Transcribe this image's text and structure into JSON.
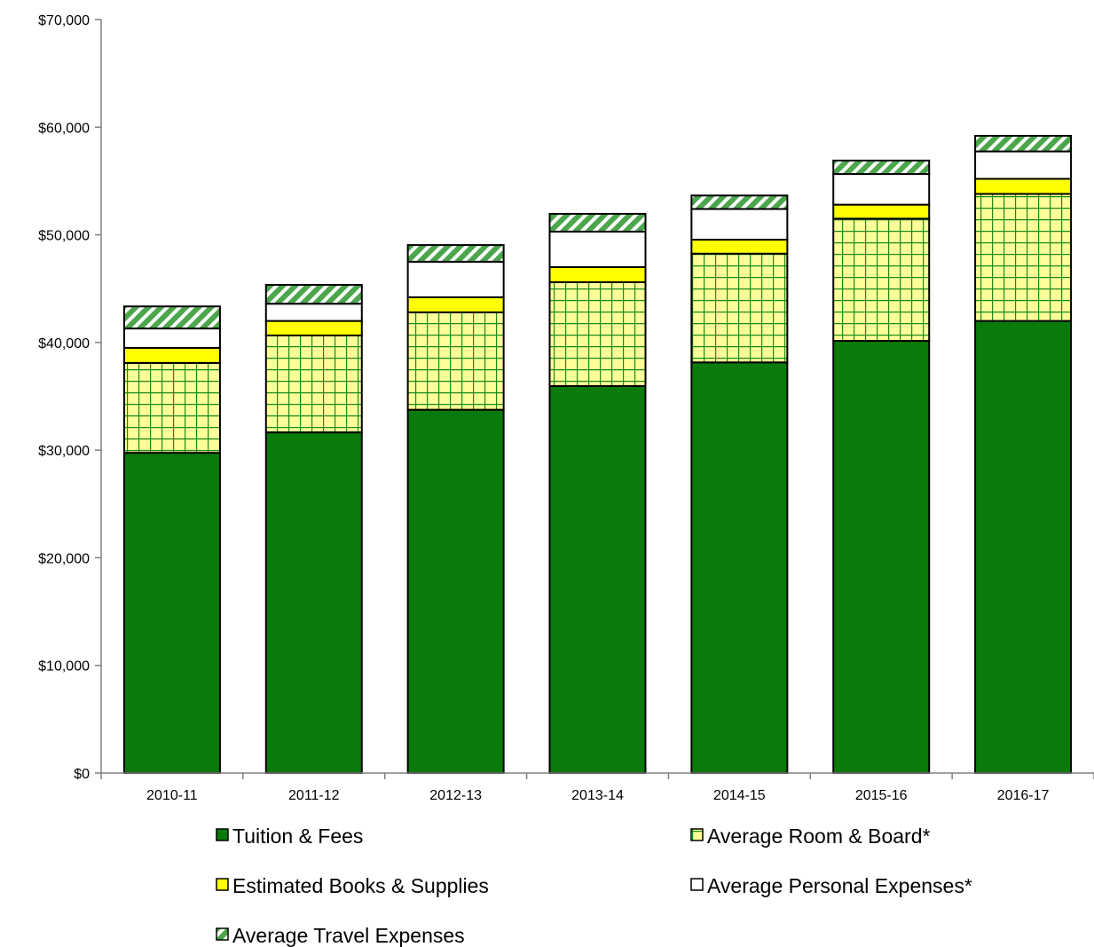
{
  "chart_data": {
    "type": "bar",
    "stacked": true,
    "categories": [
      "2010-11",
      "2011-12",
      "2012-13",
      "2013-14",
      "2014-15",
      "2015-16",
      "2016-17"
    ],
    "series": [
      {
        "name": "Tuition & Fees",
        "values": [
          29750,
          31650,
          33750,
          35950,
          38150,
          40150,
          42000
        ],
        "color": "#0a7a0a",
        "pattern": "solid"
      },
      {
        "name": "Average Room & Board*",
        "values": [
          8350,
          9000,
          9050,
          9650,
          10100,
          11350,
          11800
        ],
        "color": "#ffff99",
        "pattern": "grid"
      },
      {
        "name": "Estimated Books & Supplies",
        "values": [
          1400,
          1350,
          1400,
          1400,
          1300,
          1300,
          1400
        ],
        "color": "#ffff00",
        "pattern": "solid"
      },
      {
        "name": "Average Personal Expenses*",
        "values": [
          1800,
          1600,
          3300,
          3300,
          2850,
          2850,
          2550
        ],
        "color": "#ffffff",
        "pattern": "solid"
      },
      {
        "name": "Average Travel Expenses",
        "values": [
          2050,
          1750,
          1550,
          1650,
          1250,
          1250,
          1450
        ],
        "color": "#4ca64c",
        "pattern": "diagonal"
      }
    ],
    "ylim": [
      0,
      70000
    ],
    "yticks": [
      0,
      10000,
      20000,
      30000,
      40000,
      50000,
      60000,
      70000
    ],
    "ytick_labels": [
      "$0",
      "$10,000",
      "$20,000",
      "$30,000",
      "$40,000",
      "$50,000",
      "$60,000",
      "$70,000"
    ],
    "xlabel": "",
    "ylabel": "",
    "title": "",
    "grid": false,
    "legend": "bottom"
  }
}
